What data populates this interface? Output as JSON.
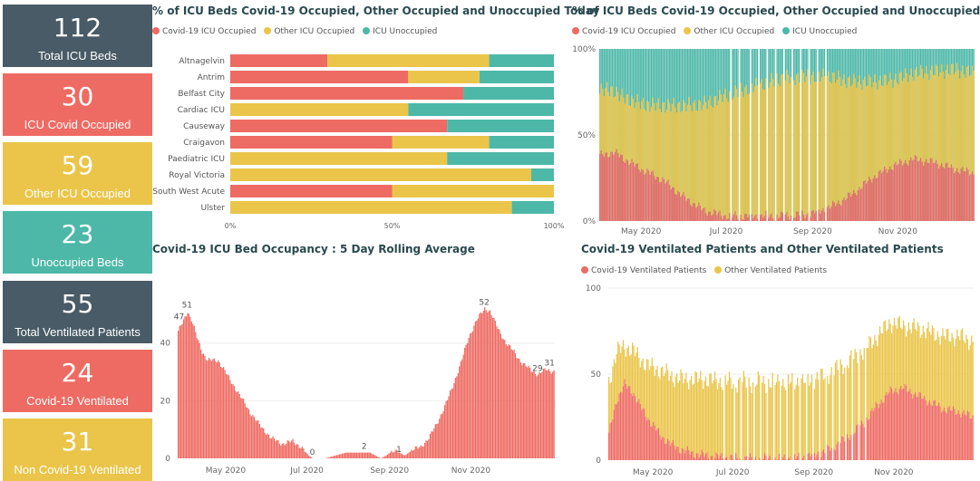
{
  "colors": {
    "covid": "#ee6b63",
    "other": "#eac54a",
    "unoccupied": "#4db8a8",
    "dark": "#485b66"
  },
  "cards": [
    {
      "value": "112",
      "label": "Total ICU Beds",
      "color": "#485b66"
    },
    {
      "value": "30",
      "label": "ICU Covid Occupied",
      "color": "#ee6b63"
    },
    {
      "value": "59",
      "label": "Other ICU Occupied",
      "color": "#eac54a"
    },
    {
      "value": "23",
      "label": "Unoccupied Beds",
      "color": "#4db8a8"
    },
    {
      "value": "55",
      "label": "Total Ventilated Patients",
      "color": "#485b66"
    },
    {
      "value": "24",
      "label": "Covid-19 Ventilated",
      "color": "#ee6b63"
    },
    {
      "value": "31",
      "label": "Non Covid-19 Ventilated",
      "color": "#eac54a"
    }
  ],
  "panels": {
    "today": {
      "title": "% of ICU Beds Covid-19 Occupied, Other Occupied and Unoccupied Today",
      "legend": [
        "Covid-19 ICU Occupied",
        "Other ICU Occupied",
        "ICU Unoccupied"
      ]
    },
    "trend": {
      "title": "% of ICU Beds Covid-19 Occupied, Other Occupied and Unoccupied",
      "legend": [
        "Covid-19 ICU Occupied",
        "Other ICU Occupied",
        "ICU Unoccupied"
      ]
    },
    "rolling": {
      "title": "Covid-19 ICU Bed Occupancy : 5 Day Rolling Average"
    },
    "ventilated": {
      "title": "Covid-19 Ventilated Patients and Other Ventilated Patients",
      "legend": [
        "Covid-19 Ventilated Patients",
        "Other Ventilated Patients"
      ]
    }
  },
  "chart_data": [
    {
      "id": "today",
      "type": "bar",
      "orientation": "horizontal",
      "stacked": "100%",
      "categories": [
        "Altnagelvin",
        "Antrim",
        "Belfast City",
        "Cardiac ICU",
        "Causeway",
        "Craigavon",
        "Paediatric ICU",
        "Royal Victoria",
        "South West Acute",
        "Ulster"
      ],
      "series": [
        {
          "name": "Covid-19 ICU Occupied",
          "values": [
            30,
            55,
            72,
            0,
            67,
            50,
            0,
            0,
            50,
            0
          ]
        },
        {
          "name": "Other ICU Occupied",
          "values": [
            50,
            22,
            0,
            55,
            0,
            30,
            67,
            93,
            50,
            87
          ]
        },
        {
          "name": "ICU Unoccupied",
          "values": [
            20,
            23,
            28,
            45,
            33,
            20,
            33,
            7,
            0,
            13
          ]
        }
      ],
      "x_ticks": [
        "0%",
        "50%",
        "100%"
      ],
      "xlim": [
        0,
        100
      ]
    },
    {
      "id": "trend",
      "type": "bar",
      "stacked": "100%",
      "x_start": "2020-04-01",
      "x_ticks": [
        "May 2020",
        "Jul 2020",
        "Sep 2020",
        "Nov 2020"
      ],
      "y_ticks": [
        "0%",
        "50%",
        "100%"
      ],
      "ylim": [
        0,
        100
      ],
      "series": [
        {
          "name": "Covid-19 ICU Occupied",
          "keypoints": [
            [
              0,
              38
            ],
            [
              10,
              40
            ],
            [
              20,
              35
            ],
            [
              30,
              30
            ],
            [
              45,
              24
            ],
            [
              60,
              14
            ],
            [
              75,
              6
            ],
            [
              90,
              3
            ],
            [
              110,
              3
            ],
            [
              130,
              3
            ],
            [
              150,
              4
            ],
            [
              165,
              8
            ],
            [
              180,
              15
            ],
            [
              195,
              25
            ],
            [
              210,
              32
            ],
            [
              225,
              36
            ],
            [
              240,
              34
            ],
            [
              255,
              30
            ],
            [
              268,
              28
            ]
          ]
        },
        {
          "name": "Other ICU Occupied",
          "keypoints": [
            [
              0,
              38
            ],
            [
              15,
              35
            ],
            [
              30,
              38
            ],
            [
              45,
              43
            ],
            [
              60,
              53
            ],
            [
              75,
              62
            ],
            [
              90,
              70
            ],
            [
              110,
              75
            ],
            [
              130,
              80
            ],
            [
              150,
              80
            ],
            [
              165,
              76
            ],
            [
              180,
              66
            ],
            [
              195,
              56
            ],
            [
              210,
              50
            ],
            [
              225,
              50
            ],
            [
              240,
              53
            ],
            [
              255,
              58
            ],
            [
              268,
              58
            ]
          ]
        }
      ],
      "gaps": [
        [
          94,
          102
        ],
        [
          108,
          165
        ]
      ],
      "gap_period": 6
    },
    {
      "id": "rolling",
      "type": "bar",
      "x_start": "2020-03-26",
      "x_ticks": [
        "May 2020",
        "Jul 2020",
        "Sep 2020",
        "Nov 2020"
      ],
      "y_ticks": [
        0,
        20,
        40
      ],
      "ylim": [
        0,
        55
      ],
      "keypoints": [
        [
          0,
          44
        ],
        [
          3,
          47
        ],
        [
          7,
          51
        ],
        [
          10,
          48
        ],
        [
          14,
          42
        ],
        [
          18,
          37
        ],
        [
          22,
          34
        ],
        [
          30,
          34
        ],
        [
          38,
          28
        ],
        [
          46,
          22
        ],
        [
          54,
          16
        ],
        [
          62,
          11
        ],
        [
          70,
          7
        ],
        [
          78,
          5
        ],
        [
          86,
          6
        ],
        [
          92,
          4
        ],
        [
          98,
          1
        ],
        [
          101,
          0
        ],
        [
          110,
          0
        ],
        [
          118,
          1
        ],
        [
          126,
          2
        ],
        [
          134,
          2
        ],
        [
          140,
          2
        ],
        [
          144,
          2
        ],
        [
          148,
          1
        ],
        [
          152,
          0
        ],
        [
          156,
          1
        ],
        [
          162,
          3
        ],
        [
          166,
          2
        ],
        [
          170,
          1
        ],
        [
          176,
          3
        ],
        [
          182,
          4
        ],
        [
          188,
          7
        ],
        [
          194,
          12
        ],
        [
          200,
          18
        ],
        [
          206,
          25
        ],
        [
          212,
          33
        ],
        [
          218,
          42
        ],
        [
          224,
          48
        ],
        [
          230,
          52
        ],
        [
          234,
          51
        ],
        [
          240,
          45
        ],
        [
          246,
          40
        ],
        [
          252,
          37
        ],
        [
          258,
          33
        ],
        [
          264,
          31
        ],
        [
          270,
          29
        ],
        [
          276,
          31
        ],
        [
          282,
          30
        ]
      ],
      "data_labels": [
        {
          "day": 1,
          "value": 47,
          "text": "47"
        },
        {
          "day": 7,
          "value": 51,
          "text": "51"
        },
        {
          "day": 101,
          "value": 0,
          "text": "0"
        },
        {
          "day": 140,
          "value": 2,
          "text": "2"
        },
        {
          "day": 166,
          "value": 1,
          "text": "1"
        },
        {
          "day": 230,
          "value": 52,
          "text": "52"
        },
        {
          "day": 270,
          "value": 29,
          "text": "29"
        },
        {
          "day": 279,
          "value": 31,
          "text": "31"
        }
      ]
    },
    {
      "id": "ventilated",
      "type": "bar",
      "stacked": true,
      "x_start": "2020-03-28",
      "x_ticks": [
        "May 2020",
        "Jul 2020",
        "Sep 2020",
        "Nov 2020"
      ],
      "y_ticks": [
        0,
        50,
        100
      ],
      "ylim": [
        0,
        100
      ],
      "series": [
        {
          "name": "Covid-19 Ventilated Patients",
          "keypoints": [
            [
              0,
              15
            ],
            [
              6,
              35
            ],
            [
              12,
              44
            ],
            [
              18,
              40
            ],
            [
              25,
              30
            ],
            [
              32,
              22
            ],
            [
              40,
              14
            ],
            [
              48,
              9
            ],
            [
              56,
              6
            ],
            [
              64,
              4
            ],
            [
              72,
              3
            ],
            [
              82,
              2
            ],
            [
              100,
              1
            ],
            [
              130,
              1
            ],
            [
              150,
              2
            ],
            [
              165,
              5
            ],
            [
              180,
              12
            ],
            [
              195,
              22
            ],
            [
              205,
              32
            ],
            [
              215,
              40
            ],
            [
              225,
              42
            ],
            [
              240,
              36
            ],
            [
              255,
              30
            ],
            [
              268,
              28
            ],
            [
              278,
              25
            ]
          ]
        },
        {
          "name": "Other Ventilated Patients",
          "keypoints": [
            [
              0,
              30
            ],
            [
              6,
              28
            ],
            [
              12,
              22
            ],
            [
              18,
              24
            ],
            [
              25,
              28
            ],
            [
              32,
              32
            ],
            [
              40,
              38
            ],
            [
              50,
              40
            ],
            [
              60,
              42
            ],
            [
              70,
              44
            ],
            [
              82,
              44
            ],
            [
              100,
              44
            ],
            [
              130,
              44
            ],
            [
              150,
              44
            ],
            [
              165,
              44
            ],
            [
              180,
              44
            ],
            [
              195,
              42
            ],
            [
              205,
              40
            ],
            [
              215,
              40
            ],
            [
              225,
              36
            ],
            [
              240,
              40
            ],
            [
              255,
              42
            ],
            [
              268,
              44
            ],
            [
              278,
              44
            ]
          ]
        }
      ],
      "gaps": [
        [
          88,
          92
        ],
        [
          96,
          196
        ]
      ],
      "gap_period": 5
    }
  ]
}
